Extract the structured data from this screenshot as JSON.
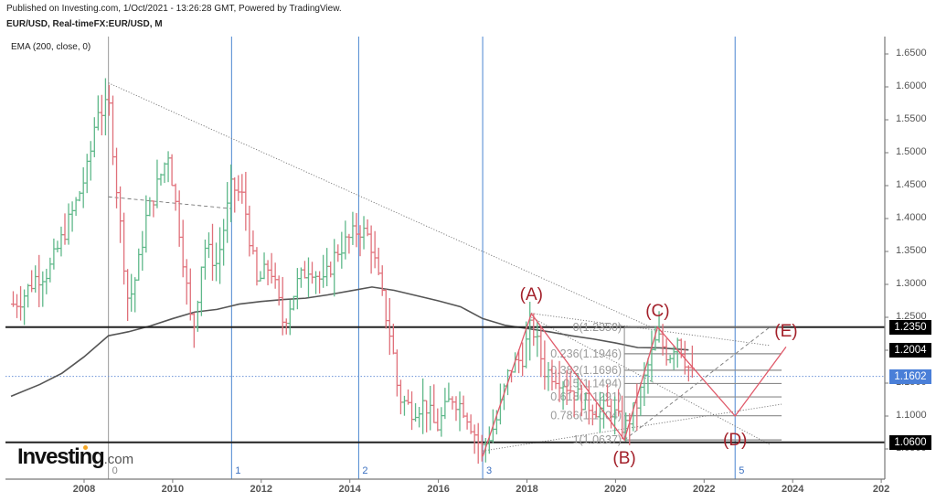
{
  "header": {
    "published": "Published on Investing.com, 1/Oct/2021 - 13:26:28 GMT, Powered by TradingView.",
    "symbol": "EUR/USD, Real-timeFX:EUR/USD, M",
    "indicator": "EMA (200, close, 0)"
  },
  "logo": {
    "brand": "Investing",
    "suffix": ".com"
  },
  "colors": {
    "up": "#5fb88a",
    "down": "#e0707a",
    "ema": "#555555",
    "hline": "#222222",
    "vline": "#4a86d0",
    "wave": "#e05a6a",
    "wave_label": "#a3202a",
    "fib": "#8a8a8a",
    "price_tag_blue": "#4a7fd8"
  },
  "price_tags": [
    {
      "label": "1.2350",
      "value": 1.235,
      "style": "black"
    },
    {
      "label": "1.2004",
      "value": 1.2004,
      "style": "black"
    },
    {
      "label": "1.1602",
      "value": 1.1602,
      "style": "blue"
    },
    {
      "label": "1.0600",
      "value": 1.06,
      "style": "black"
    }
  ],
  "vertical_markers": [
    {
      "label": "0",
      "year": 2008.55,
      "color": "#999999"
    },
    {
      "label": "1",
      "year": 2011.33,
      "color": "#4a86d0"
    },
    {
      "label": "2",
      "year": 2014.2,
      "color": "#4a86d0"
    },
    {
      "label": "3",
      "year": 2017.0,
      "color": "#4a86d0"
    },
    {
      "label": "5",
      "year": 2022.7,
      "color": "#4a86d0"
    }
  ],
  "wave_labels": [
    {
      "label": "(A)",
      "year": 2018.1,
      "price": 1.283
    },
    {
      "label": "(B)",
      "year": 2020.2,
      "price": 1.035
    },
    {
      "label": "(C)",
      "year": 2020.95,
      "price": 1.258
    },
    {
      "label": "(D)",
      "year": 2022.7,
      "price": 1.063
    },
    {
      "label": "(E)",
      "year": 2023.85,
      "price": 1.228
    }
  ],
  "fib_levels": [
    {
      "label": "0(1.2350)",
      "price": 1.235
    },
    {
      "label": "0.236(1.1946)",
      "price": 1.1946
    },
    {
      "label": "0.382(1.1696)",
      "price": 1.1696
    },
    {
      "label": "0.5(1.1494)",
      "price": 1.1494
    },
    {
      "label": "0.618(1.1291)",
      "price": 1.1291
    },
    {
      "label": "0.786(1.1004)",
      "price": 1.1004
    },
    {
      "label": "1(1.0637)",
      "price": 1.0637
    }
  ],
  "chart_data": {
    "type": "ohlc",
    "title": "EUR/USD, Real-timeFX:EUR/USD, M",
    "xlabel": "",
    "ylabel": "",
    "x_ticks": [
      "2008",
      "2010",
      "2012",
      "2014",
      "2016",
      "2018",
      "2020",
      "2022",
      "2024",
      "202"
    ],
    "y_ticks": [
      "1.6500",
      "1.6000",
      "1.5500",
      "1.5000",
      "1.4500",
      "1.4000",
      "1.3500",
      "1.3000",
      "1.2500",
      "1.2000",
      "1.1500",
      "1.1000",
      "1.0500"
    ],
    "ylim": [
      1.03,
      1.68
    ],
    "xlim": [
      2006.35,
      2026.2
    ],
    "horizontal_lines": [
      1.235,
      1.06
    ],
    "current_price": 1.1602,
    "ema200_last": 1.2004,
    "ema200": [
      [
        2006.35,
        1.13
      ],
      [
        2007.0,
        1.148
      ],
      [
        2007.5,
        1.165
      ],
      [
        2008.0,
        1.19
      ],
      [
        2008.55,
        1.222
      ],
      [
        2009.0,
        1.228
      ],
      [
        2009.5,
        1.237
      ],
      [
        2010.0,
        1.248
      ],
      [
        2010.5,
        1.258
      ],
      [
        2011.0,
        1.262
      ],
      [
        2011.5,
        1.27
      ],
      [
        2012.0,
        1.274
      ],
      [
        2012.5,
        1.277
      ],
      [
        2013.0,
        1.279
      ],
      [
        2013.5,
        1.284
      ],
      [
        2014.0,
        1.29
      ],
      [
        2014.5,
        1.296
      ],
      [
        2015.0,
        1.291
      ],
      [
        2015.5,
        1.283
      ],
      [
        2016.0,
        1.275
      ],
      [
        2016.5,
        1.266
      ],
      [
        2017.0,
        1.248
      ],
      [
        2017.5,
        1.238
      ],
      [
        2018.0,
        1.233
      ],
      [
        2018.5,
        1.228
      ],
      [
        2019.0,
        1.222
      ],
      [
        2019.5,
        1.217
      ],
      [
        2020.0,
        1.211
      ],
      [
        2020.5,
        1.204
      ],
      [
        2021.0,
        1.2035
      ],
      [
        2021.65,
        1.2004
      ]
    ],
    "price_path": [
      [
        2006.4,
        1.27
      ],
      [
        2006.6,
        1.28
      ],
      [
        2006.9,
        1.31
      ],
      [
        2007.2,
        1.32
      ],
      [
        2007.5,
        1.37
      ],
      [
        2007.8,
        1.42
      ],
      [
        2008.1,
        1.48
      ],
      [
        2008.3,
        1.57
      ],
      [
        2008.45,
        1.56
      ],
      [
        2008.55,
        1.58
      ],
      [
        2008.8,
        1.4
      ],
      [
        2009.0,
        1.27
      ],
      [
        2009.2,
        1.32
      ],
      [
        2009.4,
        1.4
      ],
      [
        2009.7,
        1.46
      ],
      [
        2009.9,
        1.5
      ],
      [
        2010.2,
        1.36
      ],
      [
        2010.45,
        1.22
      ],
      [
        2010.7,
        1.36
      ],
      [
        2011.0,
        1.33
      ],
      [
        2011.33,
        1.45
      ],
      [
        2011.6,
        1.43
      ],
      [
        2011.9,
        1.3
      ],
      [
        2012.2,
        1.33
      ],
      [
        2012.5,
        1.24
      ],
      [
        2012.8,
        1.3
      ],
      [
        2013.1,
        1.33
      ],
      [
        2013.4,
        1.3
      ],
      [
        2013.7,
        1.35
      ],
      [
        2014.0,
        1.37
      ],
      [
        2014.2,
        1.385
      ],
      [
        2014.45,
        1.37
      ],
      [
        2014.7,
        1.29
      ],
      [
        2014.95,
        1.21
      ],
      [
        2015.1,
        1.13
      ],
      [
        2015.4,
        1.11
      ],
      [
        2015.7,
        1.12
      ],
      [
        2015.95,
        1.08
      ],
      [
        2016.3,
        1.13
      ],
      [
        2016.6,
        1.11
      ],
      [
        2016.9,
        1.06
      ],
      [
        2017.0,
        1.05
      ],
      [
        2017.3,
        1.09
      ],
      [
        2017.6,
        1.17
      ],
      [
        2017.9,
        1.19
      ],
      [
        2018.1,
        1.24
      ],
      [
        2018.4,
        1.17
      ],
      [
        2018.7,
        1.16
      ],
      [
        2019.0,
        1.14
      ],
      [
        2019.3,
        1.12
      ],
      [
        2019.6,
        1.11
      ],
      [
        2019.9,
        1.11
      ],
      [
        2020.2,
        1.08
      ],
      [
        2020.5,
        1.12
      ],
      [
        2020.75,
        1.18
      ],
      [
        2020.95,
        1.22
      ],
      [
        2021.2,
        1.19
      ],
      [
        2021.4,
        1.22
      ],
      [
        2021.6,
        1.18
      ],
      [
        2021.75,
        1.16
      ]
    ],
    "elliott_wave": [
      {
        "point": "start",
        "year": 2017.0,
        "price": 1.0387
      },
      {
        "point": "(A)",
        "year": 2018.1,
        "price": 1.2555
      },
      {
        "point": "(B)",
        "year": 2020.2,
        "price": 1.0637
      },
      {
        "point": "(C)",
        "year": 2020.95,
        "price": 1.235
      },
      {
        "point": "(D)",
        "year": 2022.7,
        "price": 1.1
      },
      {
        "point": "(E)",
        "year": 2023.85,
        "price": 1.205
      }
    ],
    "trendlines": [
      {
        "style": "dotted",
        "from": [
          2008.55,
          1.606
        ],
        "to": [
          2017.9,
          1.256
        ],
        "extend_to": [
          2020.8,
          1.235
        ]
      },
      {
        "style": "dashed",
        "from": [
          2008.55,
          1.433
        ],
        "to": [
          2011.33,
          1.415
        ]
      },
      {
        "style": "dotted",
        "from": [
          2018.1,
          1.256
        ],
        "to": [
          2023.5,
          1.207
        ]
      },
      {
        "style": "dotted",
        "from": [
          2017.0,
          1.047
        ],
        "to": [
          2023.75,
          1.118
        ]
      },
      {
        "style": "dotted",
        "from": [
          2018.1,
          1.25
        ],
        "to": [
          2023.5,
          1.056
        ]
      },
      {
        "style": "dashed",
        "from": [
          2020.2,
          1.0637
        ],
        "to": [
          2023.5,
          1.236
        ]
      }
    ],
    "annotations": [
      "0",
      "1",
      "2",
      "3",
      "5",
      "(A)",
      "(B)",
      "(C)",
      "(D)",
      "(E)"
    ]
  }
}
